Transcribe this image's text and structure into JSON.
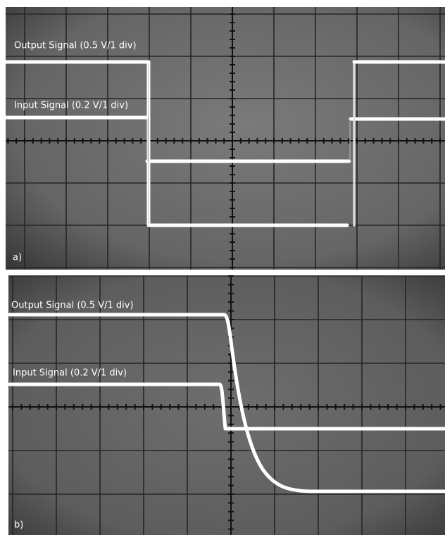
{
  "panels": [
    {
      "output_label": "Output Signal (0.5 V/1 div)",
      "input_label": "Input Signal (0.2 V/1 div)",
      "tag": "a)"
    },
    {
      "output_label": "Output Signal (0.5 V/1 div)",
      "input_label": "Input Signal (0.2 V/1 div)",
      "tag": "b)"
    }
  ]
}
